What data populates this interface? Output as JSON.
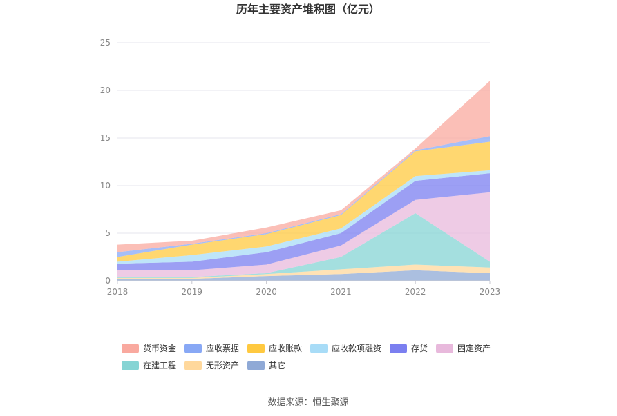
{
  "chart_data": {
    "type": "area",
    "title": "历年主要资产堆积图（亿元）",
    "source": "数据来源：恒生聚源",
    "categories": [
      "2018",
      "2019",
      "2020",
      "2021",
      "2022",
      "2023"
    ],
    "ylim": [
      0,
      25
    ],
    "yticks": [
      "0",
      "5",
      "10",
      "15",
      "20",
      "25"
    ],
    "grid": true,
    "legend_position": "bottom",
    "series": [
      {
        "name": "其它",
        "color": "#8fa9d6",
        "values": [
          0.2,
          0.2,
          0.5,
          0.7,
          1.1,
          0.8
        ]
      },
      {
        "name": "无形资产",
        "color": "#ffd89c",
        "values": [
          0.1,
          0.1,
          0.2,
          0.5,
          0.6,
          0.6
        ]
      },
      {
        "name": "在建工程",
        "color": "#86d4d4",
        "values": [
          0.1,
          0.1,
          0.1,
          1.3,
          5.4,
          0.6
        ]
      },
      {
        "name": "固定资产",
        "color": "#e8b9dc",
        "values": [
          0.7,
          0.7,
          0.9,
          1.2,
          1.4,
          7.3
        ]
      },
      {
        "name": "存货",
        "color": "#7b7ff0",
        "values": [
          0.7,
          0.9,
          1.3,
          1.3,
          2.0,
          2.0
        ]
      },
      {
        "name": "应收款项融资",
        "color": "#a8dcf7",
        "values": [
          0.2,
          0.7,
          0.6,
          0.5,
          0.5,
          0.3
        ]
      },
      {
        "name": "应收账款",
        "color": "#ffc940",
        "values": [
          0.5,
          1.1,
          1.3,
          1.4,
          2.6,
          3.0
        ]
      },
      {
        "name": "应收票据",
        "color": "#88a8f5",
        "values": [
          0.5,
          0.1,
          0.1,
          0.1,
          0.1,
          0.6
        ]
      },
      {
        "name": "货币资金",
        "color": "#f9a99f",
        "values": [
          0.8,
          0.3,
          0.6,
          0.4,
          0.2,
          5.8
        ]
      }
    ],
    "legend_order": [
      "货币资金",
      "应收票据",
      "应收账款",
      "应收款项融资",
      "存货",
      "固定资产",
      "在建工程",
      "无形资产",
      "其它"
    ]
  }
}
